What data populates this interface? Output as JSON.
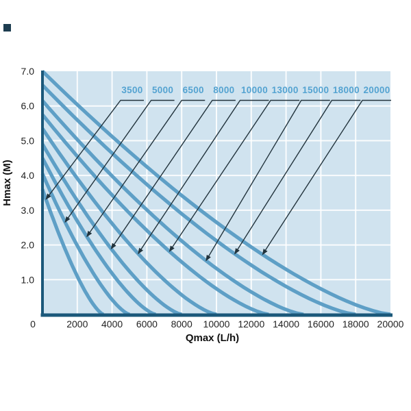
{
  "chart_data": {
    "type": "line",
    "title": "",
    "xlabel": "Qmax (L/h)",
    "ylabel": "Hmax (M)",
    "xlim": [
      0,
      20000
    ],
    "ylim": [
      0,
      7
    ],
    "grid": true,
    "legend_position": "labels-with-arrows-above-plot",
    "x_ticks": [
      "0",
      "2000",
      "4000",
      "6000",
      "8000",
      "10000",
      "12000",
      "14000",
      "16000",
      "18000",
      "20000"
    ],
    "y_ticks": [
      "7.0",
      "6.0",
      "5.0",
      "4.0",
      "3.0",
      "2.0",
      "1.0"
    ],
    "curve_exponent": 1.4,
    "series": [
      {
        "name": "3500",
        "hmax_m": 3.6,
        "qmax_lh": 3500,
        "arrow_q": 200
      },
      {
        "name": "5000",
        "hmax_m": 4.05,
        "qmax_lh": 5000,
        "arrow_q": 1300
      },
      {
        "name": "6500",
        "hmax_m": 4.5,
        "qmax_lh": 6500,
        "arrow_q": 2550
      },
      {
        "name": "8000",
        "hmax_m": 4.9,
        "qmax_lh": 8000,
        "arrow_q": 3950
      },
      {
        "name": "10000",
        "hmax_m": 5.35,
        "qmax_lh": 10000,
        "arrow_q": 5500
      },
      {
        "name": "13000",
        "hmax_m": 5.75,
        "qmax_lh": 13000,
        "arrow_q": 7300
      },
      {
        "name": "15000",
        "hmax_m": 6.15,
        "qmax_lh": 15000,
        "arrow_q": 9400
      },
      {
        "name": "18000",
        "hmax_m": 6.6,
        "qmax_lh": 18000,
        "arrow_q": 11050
      },
      {
        "name": "20000",
        "hmax_m": 7.0,
        "qmax_lh": 20000,
        "arrow_q": 12650
      }
    ],
    "colors": {
      "plot_bg": "#d0e3ef",
      "grid": "#ffffff",
      "curve": "#5e9fc6",
      "axis": "#1b587a",
      "tick_text": "#222222",
      "axis_title_text": "#111111",
      "series_label": "#54a3d1",
      "leader": "#22333c",
      "corner_mark": "#1d3d50"
    }
  }
}
